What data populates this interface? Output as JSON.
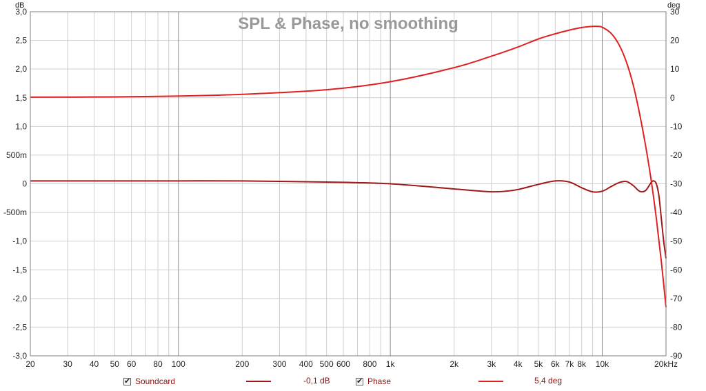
{
  "chart_data": {
    "type": "line",
    "title": "SPL & Phase, no smoothing",
    "x_scale": "log",
    "xlim": [
      20,
      20000
    ],
    "x_ticks": [
      20,
      30,
      40,
      50,
      60,
      80,
      100,
      200,
      300,
      400,
      500,
      600,
      800,
      1000,
      2000,
      3000,
      4000,
      5000,
      6000,
      7000,
      8000,
      10000,
      20000
    ],
    "x_tick_labels": [
      "20",
      "30",
      "40",
      "50",
      "60",
      "80",
      "100",
      "200",
      "300",
      "400",
      "500",
      "600",
      "800",
      "1k",
      "2k",
      "3k",
      "4k",
      "5k",
      "6k",
      "7k",
      "8k",
      "10k",
      "20kHz"
    ],
    "ylabel_left": "dB",
    "ylim_left": [
      -3.0,
      3.0
    ],
    "y_ticks_left": [
      3.0,
      2.5,
      2.0,
      1.5,
      1.0,
      0.5,
      0,
      -0.5,
      -1.0,
      -1.5,
      -2.0,
      -2.5,
      -3.0
    ],
    "y_tick_labels_left": [
      "3,0",
      "2,5",
      "2,0",
      "1,5",
      "1,0",
      "500m",
      "0",
      "-500m",
      "-1,0",
      "-1,5",
      "-2,0",
      "-2,5",
      "-3,0"
    ],
    "ylabel_right": "deg",
    "ylim_right": [
      -90,
      30
    ],
    "y_ticks_right": [
      30,
      20,
      10,
      0,
      -10,
      -20,
      -30,
      -40,
      -50,
      -60,
      -70,
      -80,
      -90
    ],
    "y_tick_labels_right": [
      "30",
      "20",
      "10",
      "0",
      "-10",
      "-20",
      "-30",
      "-40",
      "-50",
      "-60",
      "-70",
      "-80",
      "-90"
    ],
    "grid": true,
    "series": [
      {
        "name": "Soundcard",
        "axis": "left",
        "color": "#a01818",
        "legend_value": "-0,1 dB",
        "x": [
          20,
          50,
          100,
          200,
          500,
          700,
          1000,
          1500,
          2000,
          2500,
          3000,
          3500,
          4000,
          5000,
          6000,
          7000,
          8000,
          9000,
          10000,
          11000,
          12000,
          13000,
          14000,
          15000,
          16000,
          17000,
          17500,
          18000,
          18500,
          19000,
          19500,
          20000
        ],
        "y": [
          0.05,
          0.05,
          0.05,
          0.05,
          0.03,
          0.02,
          0.0,
          -0.05,
          -0.09,
          -0.12,
          -0.14,
          -0.13,
          -0.1,
          -0.01,
          0.05,
          0.03,
          -0.07,
          -0.14,
          -0.13,
          -0.05,
          0.02,
          0.04,
          -0.03,
          -0.13,
          -0.12,
          0.02,
          0.05,
          0.0,
          -0.2,
          -0.6,
          -1.0,
          -1.3
        ]
      },
      {
        "name": "Phase",
        "axis": "right",
        "color": "#e02020",
        "legend_value": "5,4 deg",
        "x": [
          20,
          50,
          100,
          200,
          500,
          1000,
          2000,
          3000,
          4000,
          5000,
          6000,
          7000,
          8000,
          9000,
          9500,
          10000,
          11000,
          12000,
          13000,
          14000,
          15000,
          16000,
          17000,
          18000,
          19000,
          20000
        ],
        "y": [
          0.2,
          0.3,
          0.6,
          1.2,
          2.8,
          5.6,
          10.5,
          14.5,
          17.7,
          20.5,
          22.3,
          23.6,
          24.5,
          24.9,
          24.9,
          24.6,
          22.5,
          18.5,
          12.5,
          4.5,
          -5.5,
          -16.5,
          -28.5,
          -42.0,
          -57.0,
          -73.0
        ]
      }
    ]
  },
  "legend": [
    {
      "label": "Soundcard",
      "value": "-0,1 dB",
      "color": "#a01818"
    },
    {
      "label": "Phase",
      "value": "5,4 deg",
      "color": "#e02020"
    }
  ]
}
